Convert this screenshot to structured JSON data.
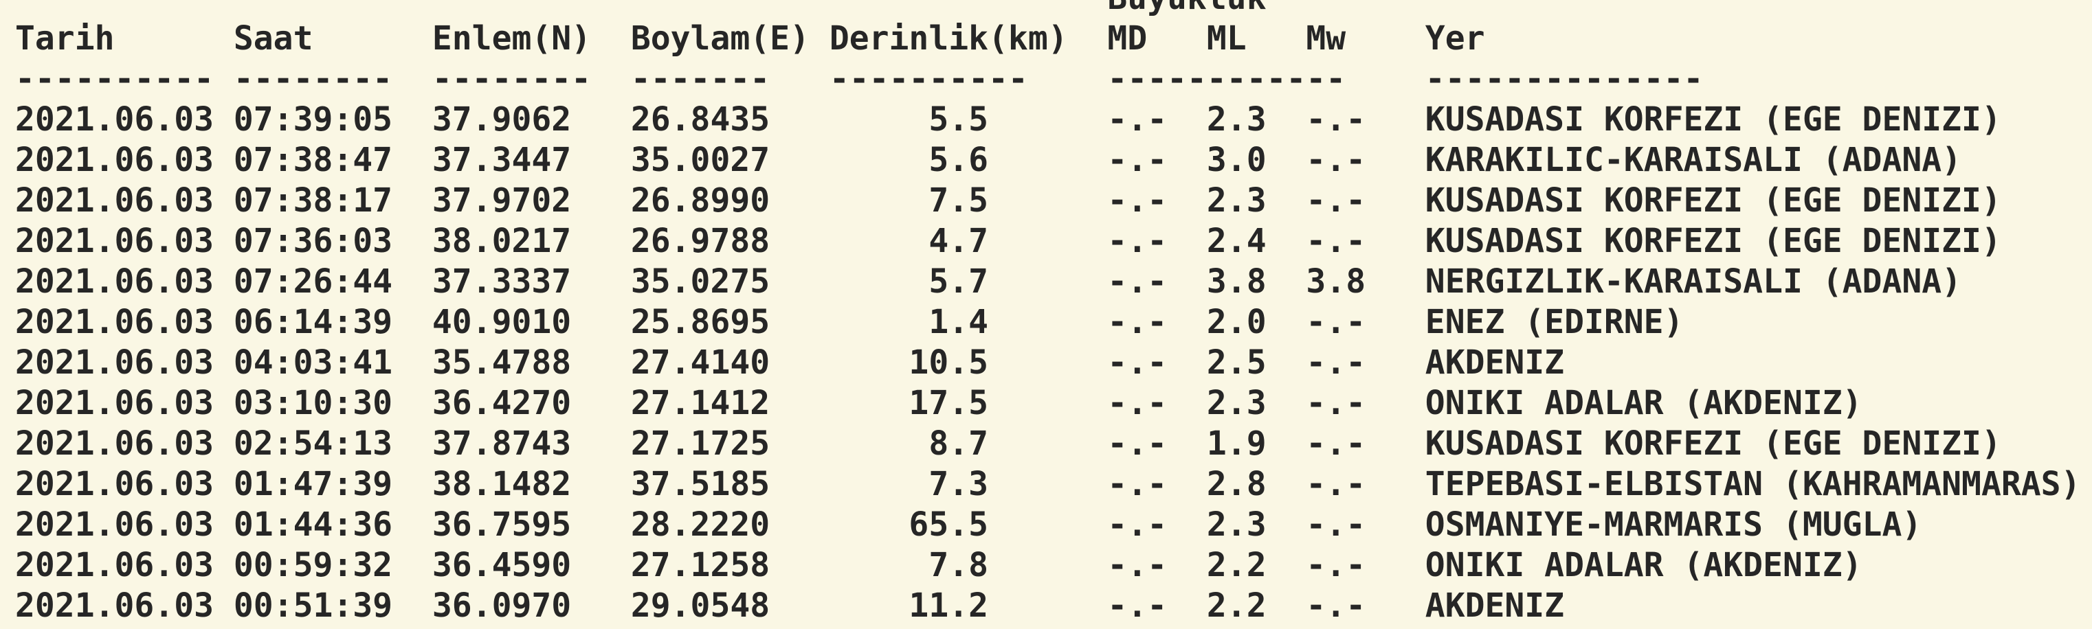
{
  "page": {
    "background_color": "#FAF7E4",
    "text_color": "#262626"
  },
  "table": {
    "group_header": "Büyüklük",
    "columns": [
      "Tarih",
      "Saat",
      "Enlem(N)",
      "Boylam(E)",
      "Derinlik(km)",
      "MD",
      "ML",
      "Mw",
      "Yer"
    ],
    "separator_dash_counts": [
      10,
      8,
      8,
      7,
      10,
      12,
      14
    ],
    "rows": [
      {
        "tarih": "2021.06.03",
        "saat": "07:39:05",
        "enlem": "37.9062",
        "boylam": "26.8435",
        "derinlik": "5.5",
        "md": "-.-",
        "ml": "2.3",
        "mw": "-.-",
        "yer": "KUSADASI KORFEZI (EGE DENIZI)"
      },
      {
        "tarih": "2021.06.03",
        "saat": "07:38:47",
        "enlem": "37.3447",
        "boylam": "35.0027",
        "derinlik": "5.6",
        "md": "-.-",
        "ml": "3.0",
        "mw": "-.-",
        "yer": "KARAKILIC-KARAISALI (ADANA)"
      },
      {
        "tarih": "2021.06.03",
        "saat": "07:38:17",
        "enlem": "37.9702",
        "boylam": "26.8990",
        "derinlik": "7.5",
        "md": "-.-",
        "ml": "2.3",
        "mw": "-.-",
        "yer": "KUSADASI KORFEZI (EGE DENIZI)"
      },
      {
        "tarih": "2021.06.03",
        "saat": "07:36:03",
        "enlem": "38.0217",
        "boylam": "26.9788",
        "derinlik": "4.7",
        "md": "-.-",
        "ml": "2.4",
        "mw": "-.-",
        "yer": "KUSADASI KORFEZI (EGE DENIZI)"
      },
      {
        "tarih": "2021.06.03",
        "saat": "07:26:44",
        "enlem": "37.3337",
        "boylam": "35.0275",
        "derinlik": "5.7",
        "md": "-.-",
        "ml": "3.8",
        "mw": "3.8",
        "yer": "NERGIZLIK-KARAISALI (ADANA)"
      },
      {
        "tarih": "2021.06.03",
        "saat": "06:14:39",
        "enlem": "40.9010",
        "boylam": "25.8695",
        "derinlik": "1.4",
        "md": "-.-",
        "ml": "2.0",
        "mw": "-.-",
        "yer": "ENEZ (EDIRNE)"
      },
      {
        "tarih": "2021.06.03",
        "saat": "04:03:41",
        "enlem": "35.4788",
        "boylam": "27.4140",
        "derinlik": "10.5",
        "md": "-.-",
        "ml": "2.5",
        "mw": "-.-",
        "yer": "AKDENIZ"
      },
      {
        "tarih": "2021.06.03",
        "saat": "03:10:30",
        "enlem": "36.4270",
        "boylam": "27.1412",
        "derinlik": "17.5",
        "md": "-.-",
        "ml": "2.3",
        "mw": "-.-",
        "yer": "ONIKI ADALAR (AKDENIZ)"
      },
      {
        "tarih": "2021.06.03",
        "saat": "02:54:13",
        "enlem": "37.8743",
        "boylam": "27.1725",
        "derinlik": "8.7",
        "md": "-.-",
        "ml": "1.9",
        "mw": "-.-",
        "yer": "KUSADASI KORFEZI (EGE DENIZI)"
      },
      {
        "tarih": "2021.06.03",
        "saat": "01:47:39",
        "enlem": "38.1482",
        "boylam": "37.5185",
        "derinlik": "7.3",
        "md": "-.-",
        "ml": "2.8",
        "mw": "-.-",
        "yer": "TEPEBASI-ELBISTAN (KAHRAMANMARAS)"
      },
      {
        "tarih": "2021.06.03",
        "saat": "01:44:36",
        "enlem": "36.7595",
        "boylam": "28.2220",
        "derinlik": "65.5",
        "md": "-.-",
        "ml": "2.3",
        "mw": "-.-",
        "yer": "OSMANIYE-MARMARIS (MUGLA)"
      },
      {
        "tarih": "2021.06.03",
        "saat": "00:59:32",
        "enlem": "36.4590",
        "boylam": "27.1258",
        "derinlik": "7.8",
        "md": "-.-",
        "ml": "2.2",
        "mw": "-.-",
        "yer": "ONIKI ADALAR (AKDENIZ)"
      },
      {
        "tarih": "2021.06.03",
        "saat": "00:51:39",
        "enlem": "36.0970",
        "boylam": "29.0548",
        "derinlik": "11.2",
        "md": "-.-",
        "ml": "2.2",
        "mw": "-.-",
        "yer": "AKDENIZ"
      }
    ]
  }
}
